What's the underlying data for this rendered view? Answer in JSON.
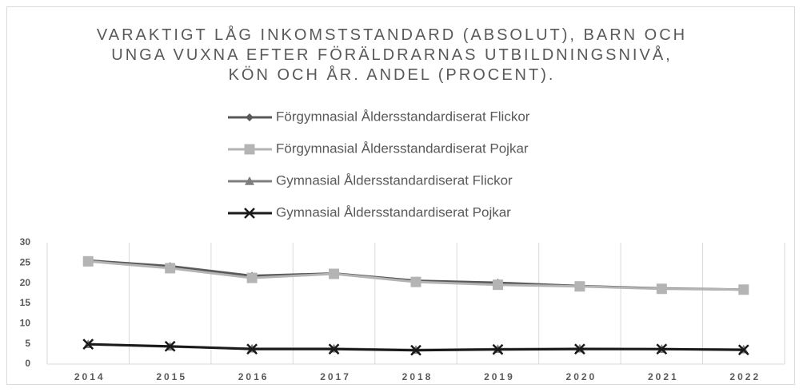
{
  "chart_data": {
    "type": "line",
    "title": "VARAKTIGT LÅG INKOMSTSTANDARD (ABSOLUT), BARN OCH UNGA VUXNA EFTER FÖRÄLDRARNAS UTBILDNINGSNIVÅ, KÖN OCH ÅR. ANDEL (PROCENT).",
    "categories": [
      "2014",
      "2015",
      "2016",
      "2017",
      "2018",
      "2019",
      "2020",
      "2021",
      "2022"
    ],
    "series": [
      {
        "name": "Förgymnasial Åldersstandardiserat Flickor",
        "color": "#595959",
        "marker": "diamond",
        "values": [
          25.6,
          24.2,
          21.8,
          22.4,
          20.6,
          20.1,
          19.3,
          18.7,
          18.4
        ]
      },
      {
        "name": "Förgymnasial Åldersstandardiserat Pojkar",
        "color": "#b4b4b4",
        "marker": "square",
        "values": [
          25.4,
          23.7,
          21.3,
          22.3,
          20.3,
          19.6,
          19.2,
          18.6,
          18.4
        ]
      },
      {
        "name": "Gymnasial Åldersstandardiserat Flickor",
        "color": "#7f7f7f",
        "marker": "triangle",
        "values": [
          4.9,
          4.3,
          3.8,
          3.8,
          3.5,
          3.7,
          3.8,
          3.7,
          3.6
        ]
      },
      {
        "name": "Gymnasial Åldersstandardiserat Pojkar",
        "color": "#1a1a1a",
        "marker": "x",
        "values": [
          4.9,
          4.4,
          3.7,
          3.7,
          3.4,
          3.6,
          3.7,
          3.7,
          3.5
        ]
      }
    ],
    "ylim": [
      0,
      30
    ],
    "yticks": [
      0,
      5,
      10,
      15,
      20,
      25,
      30
    ],
    "grid": "vertical",
    "legend": "top"
  }
}
